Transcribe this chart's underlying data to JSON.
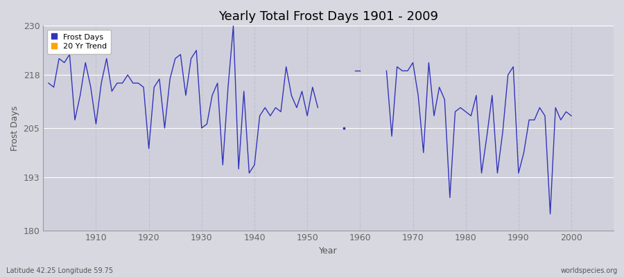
{
  "title": "Yearly Total Frost Days 1901 - 2009",
  "xlabel": "Year",
  "ylabel": "Frost Days",
  "subtitle": "Latitude 42.25 Longitude 59.75",
  "watermark": "worldspecies.org",
  "line_color": "#3333bb",
  "bg_color": "#d8d8e0",
  "plot_bg_color": "#d0d0dc",
  "grid_color_h": "#ffffff",
  "grid_color_v": "#c0c0cc",
  "ylim": [
    180,
    230
  ],
  "yticks": [
    180,
    193,
    205,
    218,
    230
  ],
  "xlim_min": 1900,
  "xlim_max": 2008,
  "xticks": [
    1910,
    1920,
    1930,
    1940,
    1950,
    1960,
    1970,
    1980,
    1990,
    2000
  ],
  "years": [
    1901,
    1902,
    1903,
    1904,
    1905,
    1906,
    1907,
    1908,
    1909,
    1910,
    1911,
    1912,
    1913,
    1914,
    1915,
    1916,
    1917,
    1918,
    1919,
    1920,
    1921,
    1922,
    1923,
    1924,
    1925,
    1926,
    1927,
    1928,
    1929,
    1930,
    1931,
    1932,
    1933,
    1934,
    1935,
    1936,
    1937,
    1938,
    1939,
    1940,
    1941,
    1942,
    1943,
    1944,
    1945,
    1946,
    1947,
    1948,
    1949,
    1950,
    1951,
    1952,
    1953,
    1954,
    1955,
    1956,
    1957,
    1958,
    1959,
    1960,
    1961,
    1962,
    1963,
    1964,
    1965,
    1966,
    1967,
    1968,
    1969,
    1970,
    1971,
    1972,
    1973,
    1974,
    1975,
    1976,
    1977,
    1978,
    1979,
    1980,
    1981,
    1982,
    1983,
    1984,
    1985,
    1986,
    1987,
    1988,
    1989,
    1990,
    1991,
    1992,
    1993,
    1994,
    1995,
    1996,
    1997,
    1998,
    1999,
    2000,
    2001,
    2002,
    2003,
    2004,
    2005,
    2006,
    2007,
    2008,
    2009
  ],
  "values": [
    216,
    215,
    222,
    221,
    223,
    207,
    213,
    221,
    215,
    206,
    216,
    222,
    214,
    216,
    216,
    218,
    216,
    216,
    215,
    200,
    215,
    217,
    205,
    217,
    222,
    223,
    213,
    222,
    224,
    205,
    206,
    213,
    216,
    196,
    215,
    230,
    195,
    214,
    194,
    196,
    208,
    210,
    208,
    210,
    209,
    220,
    213,
    210,
    214,
    208,
    215,
    210,
    null,
    null,
    null,
    null,
    205,
    null,
    219,
    219,
    null,
    null,
    null,
    null,
    219,
    203,
    220,
    219,
    219,
    221,
    213,
    199,
    221,
    208,
    215,
    212,
    188,
    209,
    210,
    209,
    208,
    213,
    194,
    203,
    213,
    194,
    204,
    218,
    220,
    194,
    199,
    207,
    207,
    210,
    208,
    184,
    210,
    207,
    209,
    208,
    null,
    null,
    null,
    null,
    null,
    null,
    null,
    null,
    null
  ]
}
